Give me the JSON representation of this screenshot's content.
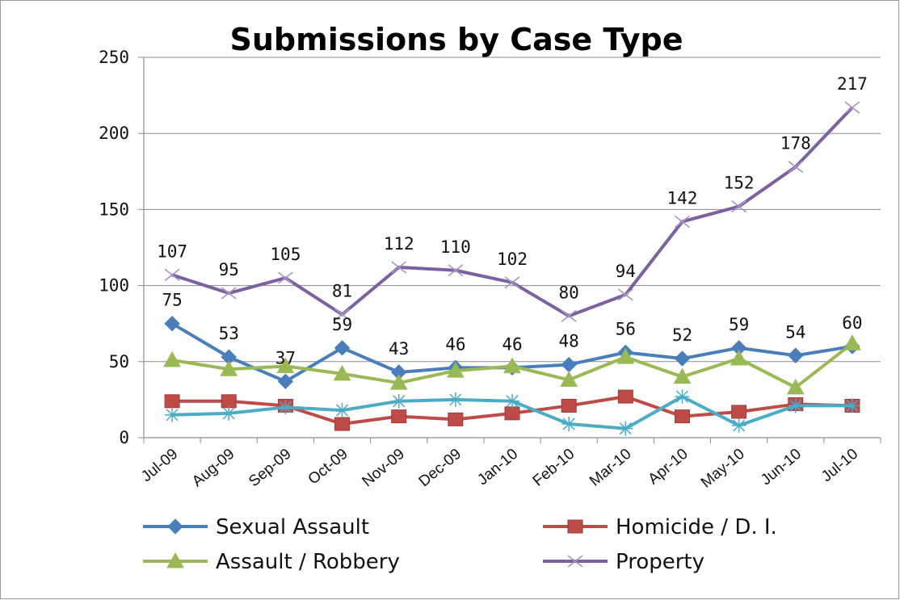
{
  "chart_data": {
    "type": "line",
    "title": "Submissions by Case Type",
    "xlabel": "",
    "ylabel": "",
    "ylim": [
      0,
      250
    ],
    "yticks": [
      0,
      50,
      100,
      150,
      200,
      250
    ],
    "grid": true,
    "legend_position": "bottom",
    "categories": [
      "Jul-09",
      "Aug-09",
      "Sep-09",
      "Oct-09",
      "Nov-09",
      "Dec-09",
      "Jan-10",
      "Feb-10",
      "Mar-10",
      "Apr-10",
      "May-10",
      "Jun-10",
      "Jul-10"
    ],
    "series": [
      {
        "name": "Sexual Assault",
        "color": "#4a7ebb",
        "marker": "diamond",
        "values": [
          75,
          53,
          37,
          59,
          43,
          46,
          46,
          48,
          56,
          52,
          59,
          54,
          60
        ],
        "labels": [
          75,
          53,
          37,
          59,
          43,
          46,
          46,
          48,
          56,
          52,
          59,
          54,
          60
        ]
      },
      {
        "name": "Homicide / D. I.",
        "color": "#be4b48",
        "marker": "square",
        "values": [
          24,
          24,
          21,
          9,
          14,
          12,
          16,
          21,
          27,
          14,
          17,
          22,
          21
        ]
      },
      {
        "name": "Assault / Robbery",
        "color": "#98b954",
        "marker": "triangle",
        "values": [
          51,
          45,
          47,
          42,
          36,
          44,
          47,
          38,
          53,
          40,
          52,
          33,
          62
        ]
      },
      {
        "name": "",
        "color": "#4bacc6",
        "marker": "star",
        "values": [
          15,
          16,
          20,
          18,
          24,
          25,
          24,
          9,
          6,
          27,
          8,
          21,
          21
        ]
      },
      {
        "name": "Property",
        "color": "#7d60a0",
        "marker": "x",
        "values": [
          107,
          95,
          105,
          81,
          112,
          110,
          102,
          80,
          94,
          142,
          152,
          178,
          217
        ],
        "labels": [
          107,
          95,
          105,
          81,
          112,
          110,
          102,
          80,
          94,
          142,
          152,
          178,
          217
        ]
      }
    ]
  }
}
